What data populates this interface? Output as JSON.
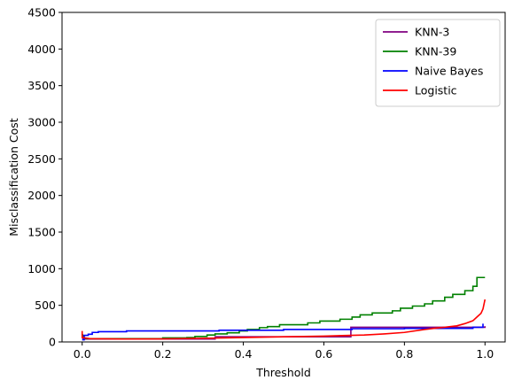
{
  "chart_data": {
    "type": "line",
    "xlabel": "Threshold",
    "ylabel": "Misclassification Cost",
    "xlim": [
      -0.05,
      1.05
    ],
    "ylim": [
      0,
      4500
    ],
    "xticks": [
      0.0,
      0.2,
      0.4,
      0.6,
      0.8,
      1.0
    ],
    "xtick_labels": [
      "0.0",
      "0.2",
      "0.4",
      "0.6",
      "0.8",
      "1.0"
    ],
    "yticks": [
      0,
      500,
      1000,
      1500,
      2000,
      2500,
      3000,
      3500,
      4000,
      4500
    ],
    "ytick_labels": [
      "0",
      "500",
      "1000",
      "1500",
      "2000",
      "2500",
      "3000",
      "3500",
      "4000",
      "4500"
    ],
    "grid": false,
    "legend_position": "top-right",
    "series": [
      {
        "name": "KNN-3",
        "color": "#800080",
        "step": true,
        "points": [
          [
            0.0,
            40
          ],
          [
            0.33,
            40
          ],
          [
            0.33,
            70
          ],
          [
            0.667,
            70
          ],
          [
            0.667,
            200
          ],
          [
            1.0,
            200
          ],
          [
            1.0,
            215
          ]
        ]
      },
      {
        "name": "KNN-39",
        "color": "#008000",
        "step": true,
        "points": [
          [
            0.0,
            110
          ],
          [
            0.005,
            60
          ],
          [
            0.01,
            45
          ],
          [
            0.2,
            45
          ],
          [
            0.2,
            55
          ],
          [
            0.26,
            55
          ],
          [
            0.26,
            60
          ],
          [
            0.28,
            60
          ],
          [
            0.28,
            75
          ],
          [
            0.31,
            75
          ],
          [
            0.31,
            95
          ],
          [
            0.33,
            95
          ],
          [
            0.33,
            110
          ],
          [
            0.36,
            110
          ],
          [
            0.36,
            125
          ],
          [
            0.39,
            125
          ],
          [
            0.39,
            150
          ],
          [
            0.41,
            150
          ],
          [
            0.41,
            170
          ],
          [
            0.44,
            170
          ],
          [
            0.44,
            195
          ],
          [
            0.46,
            195
          ],
          [
            0.46,
            210
          ],
          [
            0.49,
            210
          ],
          [
            0.49,
            235
          ],
          [
            0.56,
            235
          ],
          [
            0.56,
            260
          ],
          [
            0.59,
            260
          ],
          [
            0.59,
            285
          ],
          [
            0.64,
            285
          ],
          [
            0.64,
            310
          ],
          [
            0.67,
            310
          ],
          [
            0.67,
            340
          ],
          [
            0.69,
            340
          ],
          [
            0.69,
            370
          ],
          [
            0.72,
            370
          ],
          [
            0.72,
            395
          ],
          [
            0.77,
            395
          ],
          [
            0.77,
            425
          ],
          [
            0.79,
            425
          ],
          [
            0.79,
            460
          ],
          [
            0.82,
            460
          ],
          [
            0.82,
            490
          ],
          [
            0.85,
            490
          ],
          [
            0.85,
            520
          ],
          [
            0.87,
            520
          ],
          [
            0.87,
            560
          ],
          [
            0.9,
            560
          ],
          [
            0.9,
            610
          ],
          [
            0.92,
            610
          ],
          [
            0.92,
            650
          ],
          [
            0.95,
            650
          ],
          [
            0.95,
            700
          ],
          [
            0.97,
            700
          ],
          [
            0.97,
            760
          ],
          [
            0.98,
            760
          ],
          [
            0.98,
            880
          ],
          [
            1.0,
            880
          ]
        ]
      },
      {
        "name": "Naive Bayes",
        "color": "#0000ff",
        "step": true,
        "points": [
          [
            0.0,
            30
          ],
          [
            0.005,
            30
          ],
          [
            0.005,
            90
          ],
          [
            0.015,
            90
          ],
          [
            0.015,
            105
          ],
          [
            0.025,
            105
          ],
          [
            0.025,
            130
          ],
          [
            0.04,
            130
          ],
          [
            0.04,
            140
          ],
          [
            0.11,
            140
          ],
          [
            0.11,
            150
          ],
          [
            0.34,
            150
          ],
          [
            0.34,
            160
          ],
          [
            0.5,
            160
          ],
          [
            0.5,
            170
          ],
          [
            0.67,
            170
          ],
          [
            0.67,
            180
          ],
          [
            0.8,
            180
          ],
          [
            0.8,
            185
          ],
          [
            0.97,
            185
          ],
          [
            0.97,
            200
          ],
          [
            0.995,
            200
          ],
          [
            0.995,
            250
          ]
        ]
      },
      {
        "name": "Logistic",
        "color": "#ff0000",
        "step": false,
        "points": [
          [
            0.0,
            150
          ],
          [
            0.0,
            60
          ],
          [
            0.02,
            45
          ],
          [
            0.1,
            40
          ],
          [
            0.2,
            42
          ],
          [
            0.3,
            50
          ],
          [
            0.4,
            60
          ],
          [
            0.5,
            70
          ],
          [
            0.6,
            80
          ],
          [
            0.7,
            95
          ],
          [
            0.75,
            110
          ],
          [
            0.8,
            130
          ],
          [
            0.85,
            170
          ],
          [
            0.88,
            190
          ],
          [
            0.9,
            200
          ],
          [
            0.93,
            220
          ],
          [
            0.95,
            250
          ],
          [
            0.97,
            290
          ],
          [
            0.98,
            340
          ],
          [
            0.99,
            390
          ],
          [
            0.995,
            450
          ],
          [
            1.0,
            580
          ]
        ]
      }
    ]
  }
}
